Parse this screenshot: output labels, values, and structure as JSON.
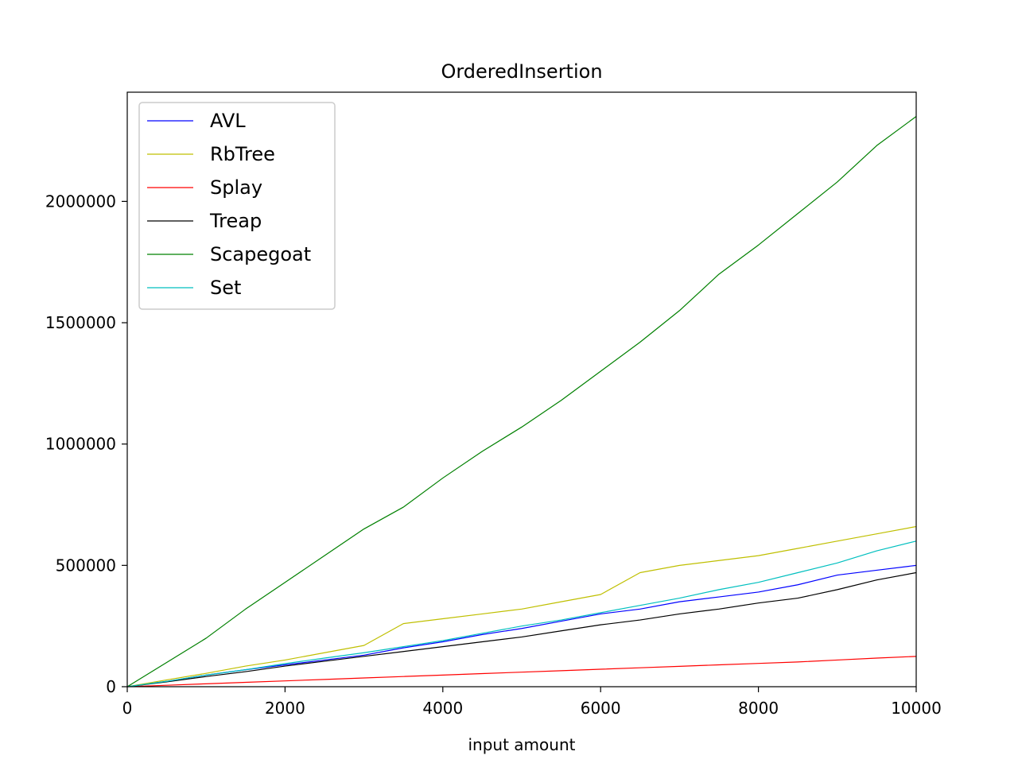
{
  "chart_data": {
    "type": "line",
    "title": "OrderedInsertion",
    "xlabel": "input amount",
    "ylabel": "",
    "xlim": [
      0,
      10000
    ],
    "ylim": [
      0,
      2450000
    ],
    "xticks": [
      0,
      2000,
      4000,
      6000,
      8000,
      10000
    ],
    "xtick_labels": [
      "0",
      "2000",
      "4000",
      "6000",
      "8000",
      "10000"
    ],
    "yticks": [
      0,
      500000,
      1000000,
      1500000,
      2000000
    ],
    "ytick_labels": [
      "0",
      "500000",
      "1000000",
      "1500000",
      "2000000"
    ],
    "grid": false,
    "legend_position": "top-left",
    "x": [
      0,
      500,
      1000,
      1500,
      2000,
      2500,
      3000,
      3500,
      4000,
      4500,
      5000,
      5500,
      6000,
      6500,
      7000,
      7500,
      8000,
      8500,
      9000,
      9500,
      10000
    ],
    "series": [
      {
        "name": "AVL",
        "color": "#0000ff",
        "values": [
          0,
          22000,
          48000,
          70000,
          90000,
          110000,
          130000,
          160000,
          185000,
          215000,
          240000,
          270000,
          300000,
          320000,
          350000,
          370000,
          390000,
          420000,
          460000,
          480000,
          500000
        ]
      },
      {
        "name": "RbTree",
        "color": "#bfbf00",
        "values": [
          0,
          28000,
          55000,
          85000,
          110000,
          140000,
          170000,
          260000,
          280000,
          300000,
          320000,
          350000,
          380000,
          470000,
          500000,
          520000,
          540000,
          570000,
          600000,
          630000,
          660000
        ]
      },
      {
        "name": "Splay",
        "color": "#ff0000",
        "values": [
          0,
          6000,
          12000,
          18000,
          24000,
          30000,
          36000,
          42000,
          48000,
          54000,
          60000,
          66000,
          72000,
          78000,
          84000,
          90000,
          96000,
          102000,
          110000,
          118000,
          125000
        ]
      },
      {
        "name": "Treap",
        "color": "#000000",
        "values": [
          0,
          20000,
          42000,
          62000,
          85000,
          105000,
          125000,
          145000,
          165000,
          185000,
          205000,
          230000,
          255000,
          275000,
          300000,
          320000,
          345000,
          365000,
          400000,
          440000,
          470000
        ]
      },
      {
        "name": "Scapegoat",
        "color": "#008000",
        "values": [
          0,
          100000,
          200000,
          320000,
          430000,
          540000,
          650000,
          740000,
          860000,
          970000,
          1070000,
          1180000,
          1300000,
          1420000,
          1550000,
          1700000,
          1820000,
          1950000,
          2080000,
          2230000,
          2350000
        ]
      },
      {
        "name": "Set",
        "color": "#00bfbf",
        "values": [
          0,
          22000,
          48000,
          70000,
          95000,
          118000,
          140000,
          165000,
          190000,
          220000,
          250000,
          275000,
          305000,
          335000,
          365000,
          400000,
          430000,
          470000,
          510000,
          560000,
          600000
        ]
      }
    ]
  }
}
